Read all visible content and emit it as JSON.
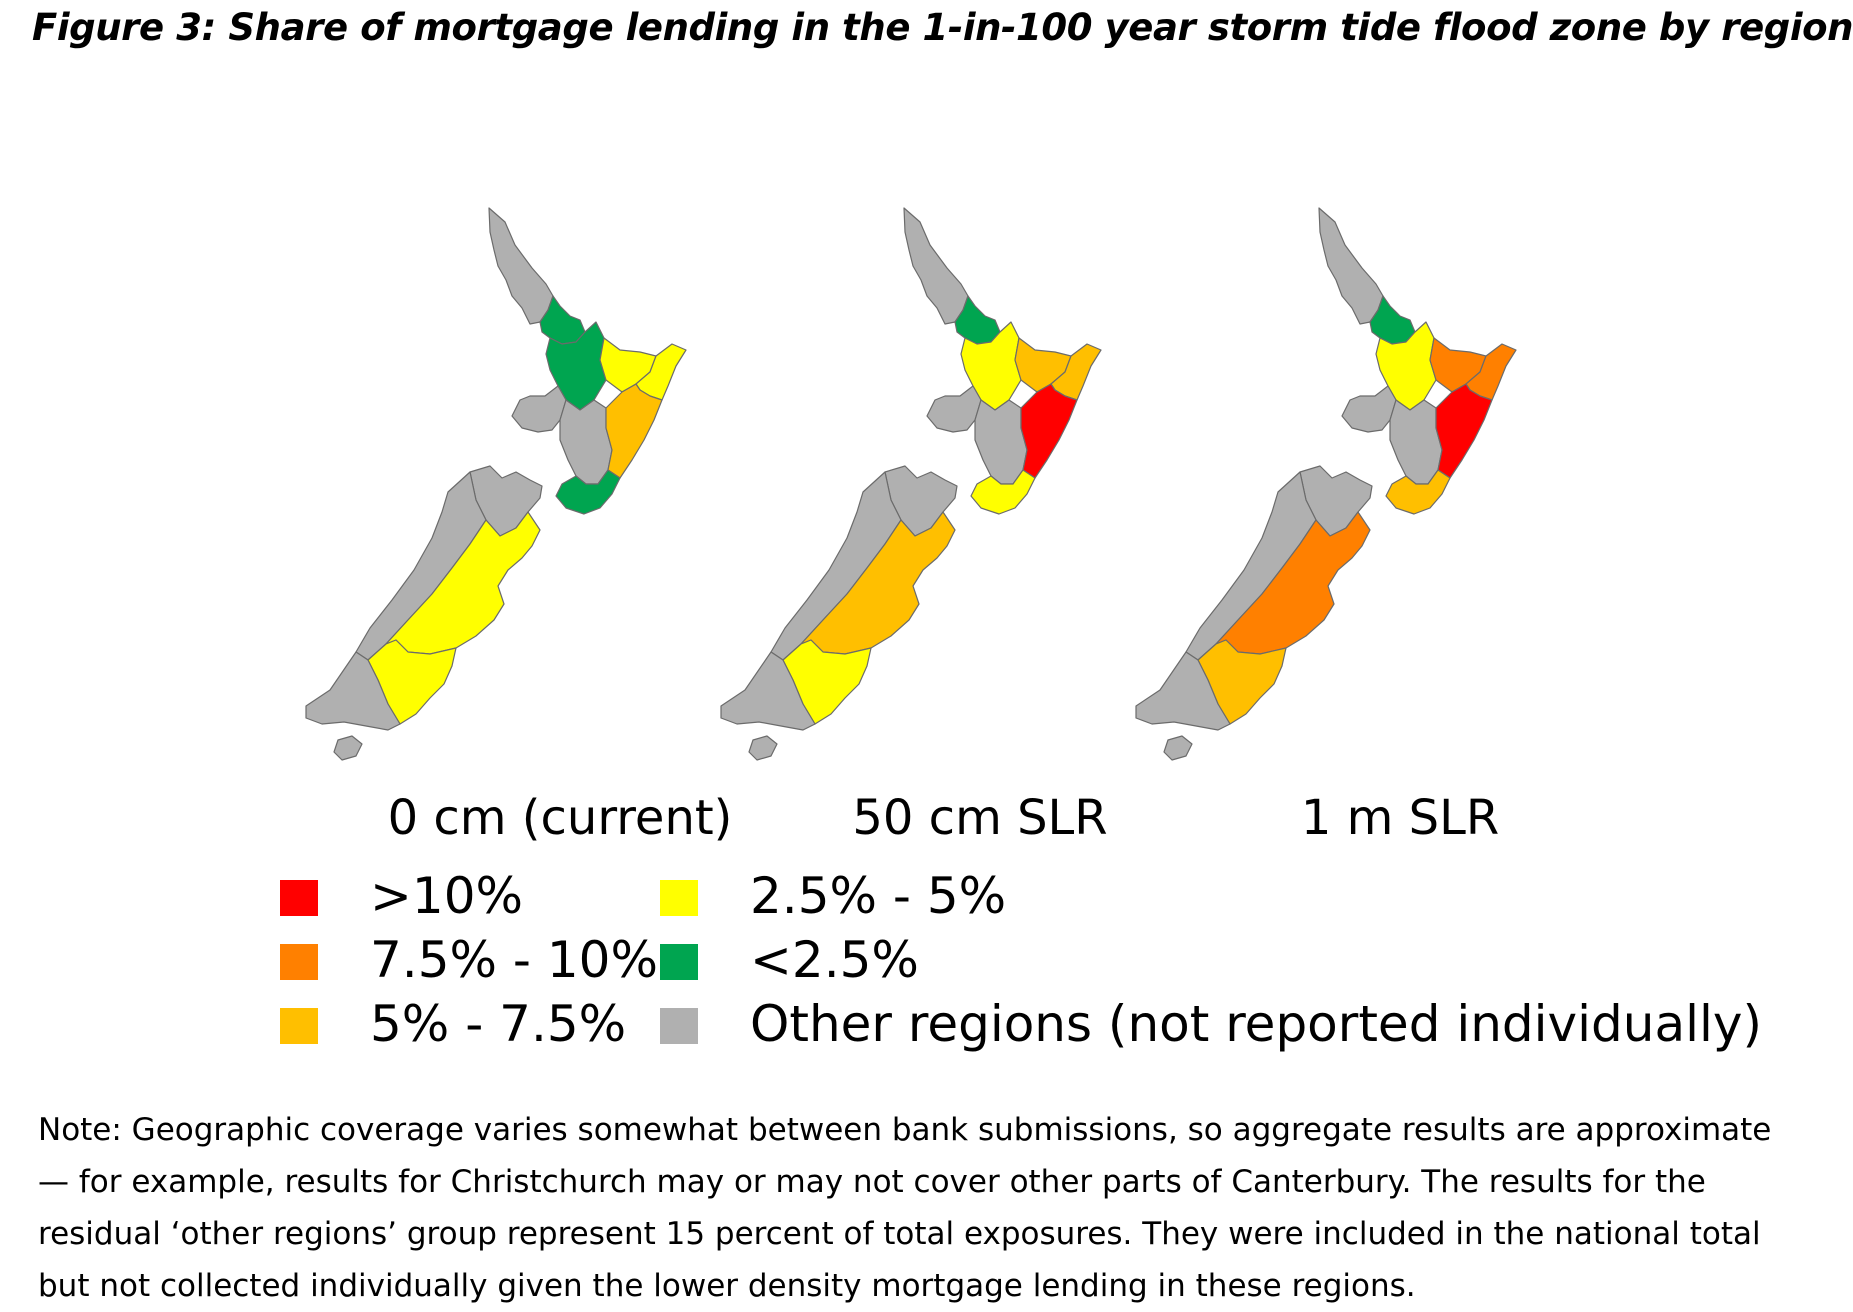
{
  "figure": {
    "title": "Figure 3: Share of mortgage lending in the 1-in-100 year storm tide flood zone by region"
  },
  "maps": [
    {
      "label": "0 cm (current)",
      "regions": {
        "northland": "other",
        "auckland": "lt2.5",
        "waikato": "lt2.5",
        "bay_of_plenty": "2.5-5",
        "gisborne": "2.5-5",
        "taranaki": "other",
        "manawatu_whanganui": "other",
        "hawkes_bay": "5-7.5",
        "wellington": "lt2.5",
        "tasman_nelson_marlborough": "other",
        "west_coast": "other",
        "canterbury": "2.5-5",
        "otago": "2.5-5",
        "southland": "other"
      }
    },
    {
      "label": "50 cm SLR",
      "regions": {
        "northland": "other",
        "auckland": "lt2.5",
        "waikato": "2.5-5",
        "bay_of_plenty": "5-7.5",
        "gisborne": "5-7.5",
        "taranaki": "other",
        "manawatu_whanganui": "other",
        "hawkes_bay": "gt10",
        "wellington": "2.5-5",
        "tasman_nelson_marlborough": "other",
        "west_coast": "other",
        "canterbury": "5-7.5",
        "otago": "2.5-5",
        "southland": "other"
      }
    },
    {
      "label": "1 m SLR",
      "regions": {
        "northland": "other",
        "auckland": "lt2.5",
        "waikato": "2.5-5",
        "bay_of_plenty": "7.5-10",
        "gisborne": "7.5-10",
        "taranaki": "other",
        "manawatu_whanganui": "other",
        "hawkes_bay": "gt10",
        "wellington": "5-7.5",
        "tasman_nelson_marlborough": "other",
        "west_coast": "other",
        "canterbury": "7.5-10",
        "otago": "5-7.5",
        "southland": "other"
      }
    }
  ],
  "legend": [
    {
      "key": "gt10",
      "label": ">10%",
      "color": "#ff0000"
    },
    {
      "key": "7.5-10",
      "label": "7.5% - 10%",
      "color": "#ff8000"
    },
    {
      "key": "5-7.5",
      "label": "5% - 7.5%",
      "color": "#ffbf00"
    },
    {
      "key": "2.5-5",
      "label": "2.5% - 5%",
      "color": "#ffff00"
    },
    {
      "key": "lt2.5",
      "label": "<2.5%",
      "color": "#00a550"
    },
    {
      "key": "other",
      "label": "Other regions (not reported individually)",
      "color": "#b0b0b0"
    }
  ],
  "note": "Note: Geographic coverage varies somewhat between bank submissions, so aggregate results are approximate — for example, results for Christchurch may or may not cover other parts of Canterbury. The results for the residual ‘other regions’ group represent 15 percent of total exposures. They were included in the national total but not collected individually given the lower density mortgage lending in these regions."
}
